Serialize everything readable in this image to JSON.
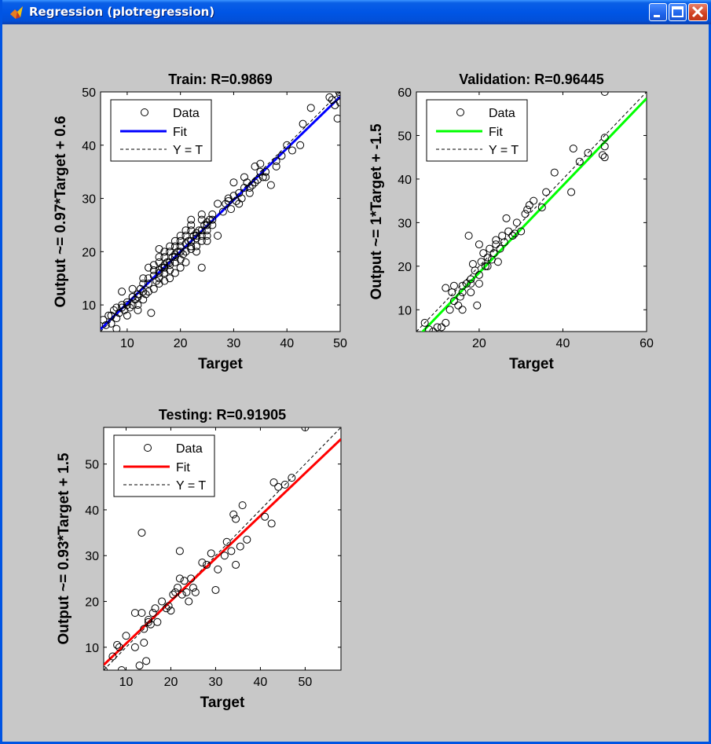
{
  "window": {
    "title": "Regression (plotregression)",
    "icon": "matlab-icon"
  },
  "colors": {
    "train_fit": "#0000ff",
    "validation_fit": "#00ff00",
    "testing_fit": "#ff0000"
  },
  "legend": {
    "data_label": "Data",
    "fit_label": "Fit",
    "identity_label": "Y = T"
  },
  "chart_data": [
    {
      "type": "scatter",
      "title": "Train: R=0.9869",
      "xlabel": "Target",
      "ylabel": "Output ~= 0.97*Target + 0.6",
      "xlim": [
        5,
        50
      ],
      "ylim": [
        5,
        50
      ],
      "xticks": [
        10,
        20,
        30,
        40,
        50
      ],
      "yticks": [
        10,
        20,
        30,
        40,
        50
      ],
      "fit": {
        "slope": 0.97,
        "intercept": 0.6
      },
      "legend_position": "top-left",
      "points": [
        [
          5.5,
          7.2
        ],
        [
          6.5,
          8
        ],
        [
          7,
          6.5
        ],
        [
          7.5,
          9
        ],
        [
          8,
          7.5
        ],
        [
          8.5,
          8.5
        ],
        [
          9,
          12.5
        ],
        [
          9.5,
          9
        ],
        [
          10,
          10.5
        ],
        [
          10.5,
          9.5
        ],
        [
          11,
          10
        ],
        [
          11.5,
          11
        ],
        [
          12,
          12
        ],
        [
          12.5,
          13
        ],
        [
          13,
          14
        ],
        [
          13.5,
          12
        ],
        [
          14,
          15
        ],
        [
          14.5,
          8.5
        ],
        [
          15,
          15.5
        ],
        [
          15.5,
          14.5
        ],
        [
          16,
          16
        ],
        [
          16.5,
          17
        ],
        [
          17,
          16
        ],
        [
          17.5,
          18
        ],
        [
          18,
          17.5
        ],
        [
          18.5,
          19
        ],
        [
          19,
          18
        ],
        [
          19.5,
          20
        ],
        [
          20,
          21
        ],
        [
          20.5,
          19.5
        ],
        [
          21,
          20
        ],
        [
          21.5,
          22
        ],
        [
          22,
          21
        ],
        [
          22.5,
          23
        ],
        [
          23,
          22.5
        ],
        [
          23.5,
          24
        ],
        [
          24,
          23
        ],
        [
          24.5,
          25
        ],
        [
          25,
          24
        ],
        [
          25.5,
          26
        ],
        [
          26,
          25
        ],
        [
          14,
          17
        ],
        [
          15,
          13
        ],
        [
          16,
          19
        ],
        [
          17,
          14.5
        ],
        [
          18,
          21
        ],
        [
          19,
          16
        ],
        [
          20,
          23
        ],
        [
          21,
          18
        ],
        [
          22,
          25
        ],
        [
          23,
          20
        ],
        [
          24,
          27
        ],
        [
          25,
          22
        ],
        [
          13,
          11
        ],
        [
          12,
          9
        ],
        [
          11,
          13
        ],
        [
          10,
          8
        ],
        [
          9,
          10
        ],
        [
          8,
          9.5
        ],
        [
          15,
          16.5
        ],
        [
          16,
          15
        ],
        [
          17,
          17.5
        ],
        [
          18,
          16.5
        ],
        [
          19,
          19.5
        ],
        [
          20,
          18.5
        ],
        [
          21,
          21.5
        ],
        [
          22,
          20.5
        ],
        [
          23,
          23.5
        ],
        [
          24,
          22
        ],
        [
          25,
          25.5
        ],
        [
          16,
          18
        ],
        [
          17,
          19
        ],
        [
          18,
          20
        ],
        [
          19,
          21
        ],
        [
          20,
          22
        ],
        [
          21,
          23
        ],
        [
          22,
          24
        ],
        [
          20,
          20
        ],
        [
          19,
          19
        ],
        [
          18,
          18
        ],
        [
          17,
          17
        ],
        [
          16,
          16.5
        ],
        [
          22,
          22
        ],
        [
          23,
          23
        ],
        [
          24,
          24
        ],
        [
          25,
          25
        ],
        [
          26,
          26
        ],
        [
          24,
          17
        ],
        [
          27,
          23
        ],
        [
          27,
          29
        ],
        [
          28,
          27.5
        ],
        [
          28.5,
          29
        ],
        [
          29,
          29.5
        ],
        [
          29.5,
          28
        ],
        [
          30,
          30.5
        ],
        [
          30.5,
          29.5
        ],
        [
          31,
          31
        ],
        [
          31.5,
          30
        ],
        [
          32,
          32
        ],
        [
          32.5,
          33
        ],
        [
          33,
          32
        ],
        [
          33.5,
          32.5
        ],
        [
          34,
          36
        ],
        [
          34.5,
          33.5
        ],
        [
          35,
          35
        ],
        [
          35.5,
          34
        ],
        [
          36,
          34
        ],
        [
          37,
          32.5
        ],
        [
          38,
          37
        ],
        [
          39,
          38
        ],
        [
          40,
          40
        ],
        [
          41,
          39
        ],
        [
          43,
          44
        ],
        [
          42.5,
          40
        ],
        [
          44.5,
          47
        ],
        [
          48,
          49
        ],
        [
          48.5,
          48.5
        ],
        [
          49,
          47.5
        ],
        [
          49.5,
          45
        ],
        [
          50,
          50.5
        ],
        [
          50,
          49.5
        ],
        [
          49.8,
          50
        ],
        [
          50,
          48
        ],
        [
          30,
          33
        ],
        [
          29,
          30
        ],
        [
          31,
          29
        ],
        [
          32,
          34
        ],
        [
          33,
          31
        ],
        [
          34,
          33
        ],
        [
          35,
          36.5
        ],
        [
          36,
          35
        ],
        [
          38,
          36
        ],
        [
          13,
          12.5
        ],
        [
          14,
          14
        ],
        [
          12,
          11.5
        ],
        [
          11,
          11.5
        ],
        [
          10,
          10
        ],
        [
          7,
          8
        ],
        [
          6,
          6.2
        ],
        [
          8,
          5.5
        ],
        [
          9,
          9.5
        ],
        [
          15,
          17.5
        ],
        [
          16,
          14
        ],
        [
          22,
          26
        ],
        [
          24,
          26
        ],
        [
          25,
          23
        ],
        [
          26,
          27
        ],
        [
          23,
          21
        ],
        [
          21,
          24
        ],
        [
          20,
          17
        ],
        [
          19,
          22
        ],
        [
          18,
          15
        ],
        [
          17,
          20
        ],
        [
          16,
          20.5
        ],
        [
          14,
          12.5
        ],
        [
          13,
          15
        ],
        [
          12,
          10
        ],
        [
          11,
          11.5
        ]
      ]
    },
    {
      "type": "scatter",
      "title": "Validation: R=0.96445",
      "xlabel": "Target",
      "ylabel": "Output ~= 1*Target + -1.5",
      "xlim": [
        5,
        60
      ],
      "ylim": [
        5,
        60
      ],
      "xticks": [
        20,
        40,
        60
      ],
      "yticks": [
        10,
        20,
        30,
        40,
        50,
        60
      ],
      "fit": {
        "slope": 1,
        "intercept": -1.5
      },
      "legend_position": "top-left",
      "points": [
        [
          7,
          7
        ],
        [
          8,
          5.5
        ],
        [
          9,
          5
        ],
        [
          10,
          6
        ],
        [
          11,
          6
        ],
        [
          12,
          7
        ],
        [
          12,
          15
        ],
        [
          13,
          10
        ],
        [
          13.5,
          14
        ],
        [
          14,
          12
        ],
        [
          15,
          11
        ],
        [
          15.5,
          13
        ],
        [
          16,
          15.5
        ],
        [
          17,
          16
        ],
        [
          17.5,
          27
        ],
        [
          18,
          17
        ],
        [
          18.5,
          20.5
        ],
        [
          19,
          19
        ],
        [
          19.5,
          11
        ],
        [
          20,
          18
        ],
        [
          20.5,
          21
        ],
        [
          21,
          23
        ],
        [
          21.5,
          20
        ],
        [
          22,
          22
        ],
        [
          22.5,
          24
        ],
        [
          23,
          21.5
        ],
        [
          23.5,
          23
        ],
        [
          24,
          25
        ],
        [
          24.5,
          21
        ],
        [
          25,
          24
        ],
        [
          25.5,
          27
        ],
        [
          26,
          25.5
        ],
        [
          26.5,
          31
        ],
        [
          27,
          28
        ],
        [
          28,
          27
        ],
        [
          28.5,
          27.5
        ],
        [
          29,
          30
        ],
        [
          30,
          28
        ],
        [
          31,
          32
        ],
        [
          31.5,
          33
        ],
        [
          32,
          34
        ],
        [
          33,
          35
        ],
        [
          35,
          33.5
        ],
        [
          36,
          37
        ],
        [
          38,
          41.5
        ],
        [
          42,
          37
        ],
        [
          42.5,
          47
        ],
        [
          44,
          44
        ],
        [
          46,
          46
        ],
        [
          50,
          60
        ],
        [
          50,
          49.5
        ],
        [
          50,
          47.5
        ],
        [
          50,
          45
        ],
        [
          49.5,
          45.5
        ],
        [
          16,
          14
        ],
        [
          18,
          16
        ],
        [
          20,
          16
        ],
        [
          22,
          20
        ],
        [
          24,
          26
        ],
        [
          28,
          27
        ],
        [
          16,
          10
        ],
        [
          14,
          15.5
        ],
        [
          20,
          25
        ],
        [
          18,
          14
        ]
      ]
    },
    {
      "type": "scatter",
      "title": "Testing: R=0.91905",
      "xlabel": "Target",
      "ylabel": "Output ~= 0.93*Target + 1.5",
      "xlim": [
        5,
        58
      ],
      "ylim": [
        5,
        58
      ],
      "xticks": [
        10,
        20,
        30,
        40,
        50
      ],
      "yticks": [
        10,
        20,
        30,
        40,
        50
      ],
      "fit": {
        "slope": 0.93,
        "intercept": 1.5
      },
      "legend_position": "top-left",
      "points": [
        [
          5,
          5
        ],
        [
          7,
          8
        ],
        [
          8,
          10.5
        ],
        [
          8.5,
          10
        ],
        [
          9,
          5
        ],
        [
          10,
          12.5
        ],
        [
          12,
          17.5
        ],
        [
          12,
          10
        ],
        [
          13,
          6
        ],
        [
          13.5,
          35
        ],
        [
          13.5,
          17.5
        ],
        [
          14,
          11
        ],
        [
          14,
          14
        ],
        [
          14.5,
          7
        ],
        [
          15,
          15.5
        ],
        [
          15,
          16
        ],
        [
          15.5,
          15
        ],
        [
          16,
          17.5
        ],
        [
          16.5,
          18.5
        ],
        [
          17,
          15.5
        ],
        [
          18,
          20
        ],
        [
          19,
          18.5
        ],
        [
          19.5,
          19
        ],
        [
          20,
          18
        ],
        [
          20.5,
          21.5
        ],
        [
          21,
          22
        ],
        [
          21.5,
          23
        ],
        [
          22,
          25
        ],
        [
          22,
          31
        ],
        [
          22.5,
          21.5
        ],
        [
          23,
          24.5
        ],
        [
          23.5,
          22
        ],
        [
          24,
          20
        ],
        [
          24.5,
          25
        ],
        [
          25,
          23
        ],
        [
          25.5,
          22
        ],
        [
          27,
          28.5
        ],
        [
          28,
          28
        ],
        [
          29,
          30.5
        ],
        [
          30,
          22.5
        ],
        [
          30.5,
          27
        ],
        [
          32,
          30
        ],
        [
          32.5,
          33
        ],
        [
          33.5,
          31
        ],
        [
          34,
          39
        ],
        [
          34.5,
          28
        ],
        [
          34.5,
          38
        ],
        [
          35.5,
          32
        ],
        [
          36,
          41
        ],
        [
          37,
          33.5
        ],
        [
          41,
          38.5
        ],
        [
          42.5,
          37
        ],
        [
          43,
          46
        ],
        [
          44,
          45
        ],
        [
          45.5,
          45.5
        ],
        [
          47,
          47
        ],
        [
          50,
          58
        ]
      ]
    }
  ]
}
